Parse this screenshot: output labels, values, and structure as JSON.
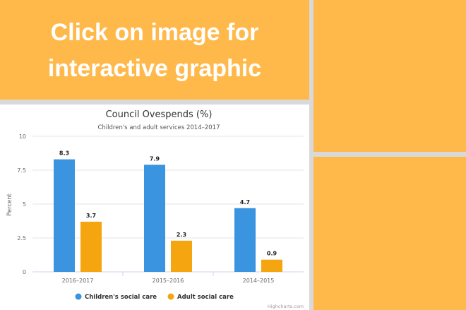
{
  "banner": {
    "line1": "Click on image for",
    "line2": "interactive graphic"
  },
  "colors": {
    "banner_orange": "#ffb84a",
    "series_children": "#3a94e0",
    "series_adult": "#f5a50f"
  },
  "chart_data": {
    "type": "bar",
    "title": "Council Ovespends (%)",
    "subtitle": "Children's and adult services 2014–2017",
    "ylabel": "Percent",
    "xlabel": "",
    "ylim": [
      0,
      10
    ],
    "yticks": [
      0,
      2.5,
      5,
      7.5,
      10
    ],
    "ytick_labels": [
      "0",
      "2.5",
      "5",
      "7.5",
      "10"
    ],
    "categories": [
      "2016–2017",
      "2015–2016",
      "2014–2015"
    ],
    "series": [
      {
        "name": "Children's social care",
        "values": [
          8.3,
          7.9,
          4.7
        ],
        "labels": [
          "8.3",
          "7.9",
          "4.7"
        ],
        "color": "#3a94e0"
      },
      {
        "name": "Adult social care",
        "values": [
          3.7,
          2.3,
          0.9
        ],
        "labels": [
          "3.7",
          "2.3",
          "0.9"
        ],
        "color": "#f5a50f"
      }
    ],
    "legend": "bottom-center",
    "grid": true,
    "credits": "Highcharts.com"
  }
}
